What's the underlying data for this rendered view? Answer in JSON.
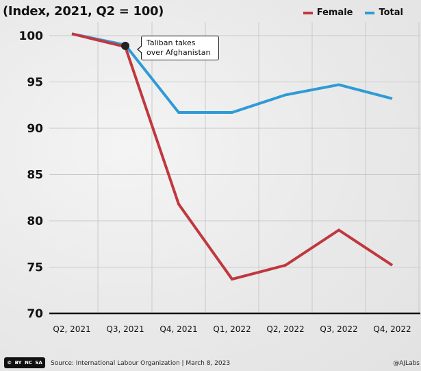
{
  "header": {
    "subtitle": "(Index, 2021, Q2 = 100)"
  },
  "legend": {
    "items": [
      {
        "label": "Female",
        "color": "#c0383f"
      },
      {
        "label": "Total",
        "color": "#2e9bd6"
      }
    ]
  },
  "annotation": {
    "line1": "Taliban takes",
    "line2": "over Afghanistan"
  },
  "footer": {
    "license": "CC BY NC SA",
    "source": "Source: International Labour Organization  |  March 8, 2023",
    "handle": "@AJLabs"
  },
  "chart_data": {
    "type": "line",
    "categories": [
      "Q2, 2021",
      "Q3, 2021",
      "Q4, 2021",
      "Q1, 2022",
      "Q2, 2022",
      "Q3, 2022",
      "Q4, 2022"
    ],
    "series": [
      {
        "name": "Female",
        "color": "#c0383f",
        "values": [
          100.2,
          98.8,
          81.8,
          73.7,
          75.2,
          79.0,
          75.2
        ]
      },
      {
        "name": "Total",
        "color": "#2e9bd6",
        "values": [
          100.2,
          99.0,
          91.7,
          91.7,
          93.6,
          94.7,
          93.2
        ]
      }
    ],
    "yticks": [
      70,
      75,
      80,
      85,
      90,
      95,
      100
    ],
    "ylim": [
      70,
      101.5
    ],
    "grid": true,
    "legend_position": "top-right",
    "annotation_category_index": 1
  }
}
